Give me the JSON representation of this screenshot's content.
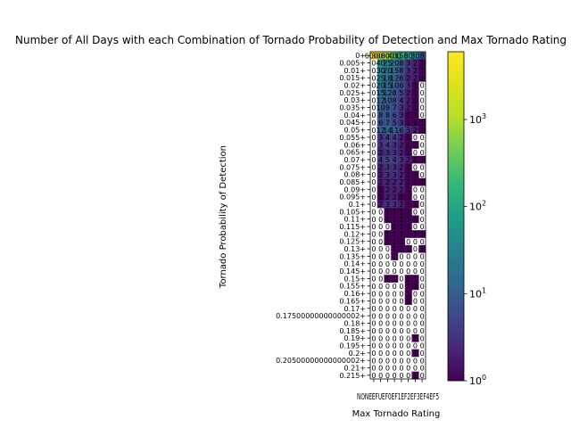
{
  "chart_data": {
    "type": "heatmap",
    "title": "Number of All Days with each Combination of Tornado Probability of Detection and Max Tornado Rating",
    "xlabel": "Max Tornado Rating",
    "ylabel": "Tornado Probability of Detection",
    "x_categories": [
      "NONE",
      "EFU",
      "EF0",
      "EF1",
      "EF2",
      "EF3",
      "EF4",
      "EF5"
    ],
    "x_tick_labels_visible": "NONEEFUEF0EF1EF2EF3EF4EF5",
    "y_categories": [
      "0+",
      "0.005+",
      "0.01+",
      "0.015+",
      "0.02+",
      "0.025+",
      "0.03+",
      "0.035+",
      "0.04+",
      "0.045+",
      "0.05+",
      "0.055+",
      "0.06+",
      "0.065+",
      "0.07+",
      "0.075+",
      "0.08+",
      "0.085+",
      "0.09+",
      "0.095+",
      "0.1+",
      "0.105+",
      "0.11+",
      "0.115+",
      "0.12+",
      "0.125+",
      "0.13+",
      "0.135+",
      "0.14+",
      "0.145+",
      "0.15+",
      "0.155+",
      "0.16+",
      "0.165+",
      "0.17+",
      "0.17500000000000002+",
      "0.18+",
      "0.185+",
      "0.19+",
      "0.195+",
      "0.2+",
      "0.20500000000000002+",
      "0.21+",
      "0.215+"
    ],
    "color_scale": "log",
    "colormap": "viridis",
    "vmin": 1,
    "vmax": 6000,
    "colorbar_ticks": [
      {
        "value": 1,
        "base": "10",
        "exp": "0"
      },
      {
        "value": 10,
        "base": "10",
        "exp": "1"
      },
      {
        "value": 100,
        "base": "10",
        "exp": "2"
      },
      {
        "value": 1000,
        "base": "10",
        "exp": "3"
      }
    ],
    "values": [
      [
        6000,
        3000,
        800,
        400,
        150,
        80,
        30,
        8
      ],
      [
        0,
        40,
        25,
        20,
        8,
        3,
        2,
        1
      ],
      [
        0,
        30,
        20,
        15,
        8,
        3,
        2,
        1
      ],
      [
        0,
        25,
        18,
        12,
        6,
        2,
        2,
        1
      ],
      [
        0,
        20,
        15,
        10,
        6,
        3,
        1,
        0
      ],
      [
        0,
        15,
        12,
        8,
        5,
        2,
        1,
        0
      ],
      [
        0,
        12,
        10,
        8,
        4,
        2,
        1,
        0
      ],
      [
        0,
        10,
        9,
        7,
        3,
        2,
        1,
        0
      ],
      [
        0,
        8,
        8,
        6,
        3,
        1,
        1,
        0
      ],
      [
        0,
        6,
        7,
        5,
        3,
        1,
        1,
        1
      ],
      [
        0,
        12,
        14,
        11,
        6,
        3,
        2,
        1
      ],
      [
        0,
        3,
        4,
        4,
        2,
        1,
        0,
        0
      ],
      [
        0,
        3,
        4,
        3,
        2,
        1,
        1,
        0
      ],
      [
        0,
        2,
        3,
        3,
        2,
        1,
        0,
        0
      ],
      [
        0,
        4,
        5,
        4,
        3,
        2,
        1,
        1
      ],
      [
        0,
        2,
        3,
        3,
        2,
        1,
        0,
        0
      ],
      [
        0,
        2,
        3,
        3,
        2,
        1,
        1,
        0
      ],
      [
        0,
        2,
        2,
        2,
        2,
        1,
        1,
        1
      ],
      [
        0,
        1,
        2,
        2,
        2,
        1,
        0,
        0
      ],
      [
        0,
        1,
        2,
        2,
        1,
        1,
        0,
        0
      ],
      [
        0,
        2,
        3,
        3,
        2,
        1,
        1,
        0
      ],
      [
        0,
        0,
        1,
        1,
        1,
        1,
        0,
        0
      ],
      [
        0,
        0,
        1,
        1,
        1,
        1,
        1,
        0
      ],
      [
        0,
        0,
        0,
        1,
        1,
        1,
        0,
        0
      ],
      [
        0,
        0,
        1,
        1,
        1,
        1,
        1,
        1
      ],
      [
        0,
        0,
        1,
        1,
        1,
        0,
        0,
        0
      ],
      [
        0,
        0,
        0,
        1,
        1,
        1,
        0,
        1
      ],
      [
        0,
        0,
        0,
        1,
        0,
        0,
        0,
        0
      ],
      [
        0,
        0,
        0,
        0,
        0,
        0,
        0,
        0
      ],
      [
        0,
        0,
        0,
        0,
        0,
        0,
        0,
        0
      ],
      [
        0,
        0,
        1,
        1,
        0,
        1,
        1,
        0
      ],
      [
        0,
        0,
        0,
        0,
        0,
        1,
        1,
        0
      ],
      [
        0,
        0,
        0,
        0,
        0,
        1,
        0,
        0
      ],
      [
        0,
        0,
        0,
        0,
        0,
        1,
        0,
        0
      ],
      [
        0,
        0,
        0,
        0,
        0,
        0,
        0,
        0
      ],
      [
        0,
        0,
        0,
        0,
        0,
        0,
        0,
        0
      ],
      [
        0,
        0,
        0,
        0,
        0,
        0,
        0,
        0
      ],
      [
        0,
        0,
        0,
        0,
        0,
        0,
        0,
        0
      ],
      [
        0,
        0,
        0,
        0,
        0,
        0,
        1,
        0
      ],
      [
        0,
        0,
        0,
        0,
        0,
        0,
        0,
        0
      ],
      [
        0,
        0,
        0,
        0,
        0,
        0,
        1,
        0
      ],
      [
        0,
        0,
        0,
        0,
        0,
        0,
        0,
        0
      ],
      [
        0,
        0,
        0,
        0,
        0,
        0,
        0,
        0
      ],
      [
        0,
        0,
        0,
        0,
        0,
        0,
        1,
        0
      ]
    ],
    "legend": "none",
    "grid": false
  }
}
